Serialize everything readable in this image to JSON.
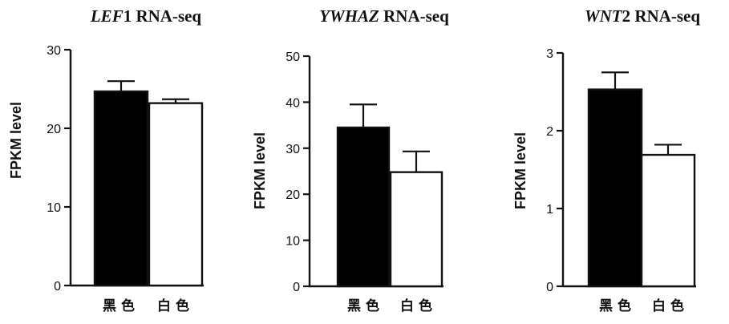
{
  "chart_data": [
    {
      "type": "bar",
      "title_gene": "LEF",
      "title_rest": "1 RNA-seq",
      "ylabel": "FPKM level",
      "ylim": [
        0,
        30
      ],
      "yticks": [
        0,
        10,
        20,
        30
      ],
      "categories": [
        "黑色",
        "白色"
      ],
      "values": [
        24.7,
        23.2
      ],
      "errors": [
        1.3,
        0.5
      ],
      "colors": [
        "#000000",
        "#ffffff"
      ]
    },
    {
      "type": "bar",
      "title_gene": "YWHAZ",
      "title_rest": " RNA-seq",
      "ylabel": "FPKM level",
      "ylim": [
        0,
        50
      ],
      "yticks": [
        0,
        10,
        20,
        30,
        40,
        50
      ],
      "categories": [
        "黑色",
        "白色"
      ],
      "values": [
        34.5,
        24.8
      ],
      "errors": [
        5.0,
        4.5
      ],
      "colors": [
        "#000000",
        "#ffffff"
      ]
    },
    {
      "type": "bar",
      "title_gene": "WNT",
      "title_rest": "2 RNA-seq",
      "ylabel": "FPKM level",
      "ylim": [
        0,
        3
      ],
      "yticks": [
        0,
        1,
        2,
        3
      ],
      "categories": [
        "黑色",
        "白色"
      ],
      "values": [
        2.53,
        1.69
      ],
      "errors": [
        0.22,
        0.13
      ],
      "colors": [
        "#000000",
        "#ffffff"
      ]
    }
  ]
}
